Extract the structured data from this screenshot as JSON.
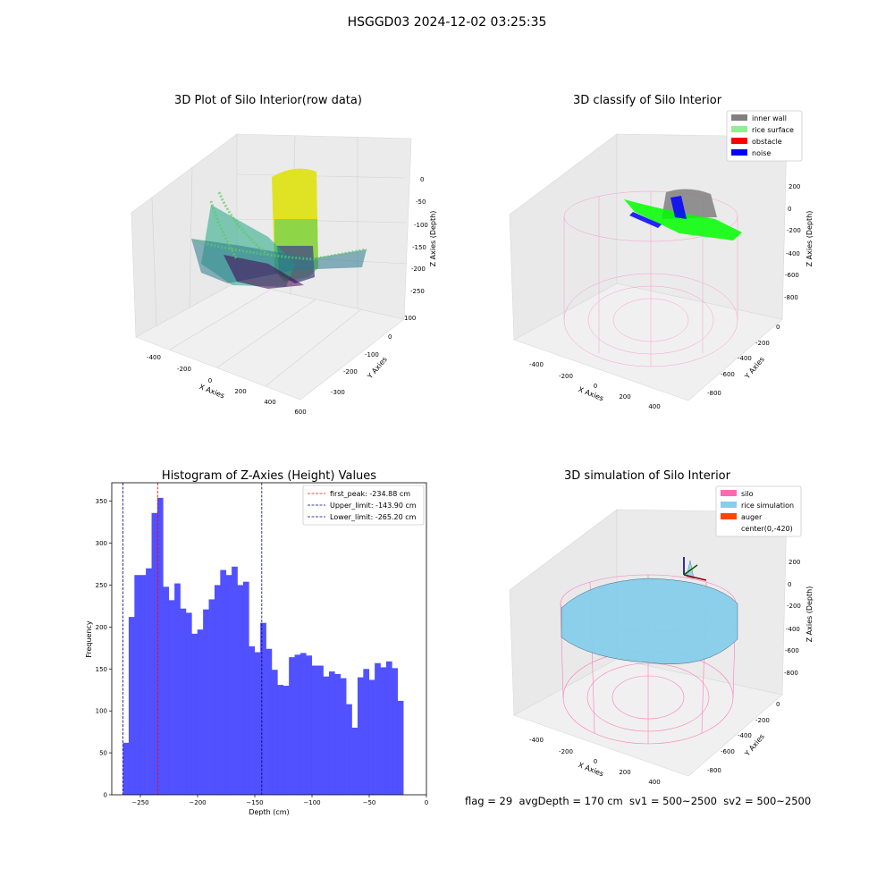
{
  "figure_title": "HSGGD03 2024-12-02 03:25:35",
  "footer_text": "flag = 29  avgDepth = 170 cm  sv1 = 500~2500  sv2 = 500~2500",
  "colors": {
    "hist_bar": "#4b4bff",
    "silo": "#ff69b4",
    "rice": "#87ceeb",
    "auger": "#ff4500",
    "inner_wall": "#808080",
    "rice_surface": "#90ee90",
    "obstacle": "#ff0000",
    "noise": "#0000ff"
  },
  "chart_data": [
    {
      "type": "scatter",
      "projection": "3d",
      "title": "3D Plot of Silo Interior(row data)",
      "xlabel": "X Axies",
      "ylabel": "Y Axies",
      "zlabel": "Z Axies (Depth)",
      "x_ticks": [
        "-400",
        "-200",
        "0",
        "200",
        "400",
        "600"
      ],
      "y_ticks": [
        "100",
        "0",
        "-100",
        "-200",
        "-300"
      ],
      "z_ticks": [
        "0",
        "-50",
        "-100",
        "-150",
        "-200",
        "-250"
      ],
      "colormap": "viridis"
    },
    {
      "type": "scatter",
      "projection": "3d",
      "title": "3D classify of Silo Interior",
      "xlabel": "X Axies",
      "ylabel": "Y Axies",
      "zlabel": "Z Axies (Depth)",
      "x_ticks": [
        "-400",
        "-200",
        "0",
        "200",
        "400"
      ],
      "y_ticks": [
        "0",
        "-200",
        "-400",
        "-600",
        "-800"
      ],
      "z_ticks": [
        "200",
        "0",
        "-200",
        "-400",
        "-600",
        "-800"
      ],
      "legend": [
        {
          "label": "inner wall",
          "color": "#808080"
        },
        {
          "label": "rice surface",
          "color": "#90ee90"
        },
        {
          "label": "obstacle",
          "color": "#ff0000"
        },
        {
          "label": "noise",
          "color": "#0000ff"
        }
      ],
      "legend_position": "top-right"
    },
    {
      "type": "bar",
      "subtype": "histogram",
      "title": "Histogram of Z-Axies (Height) Values",
      "xlabel": "Depth (cm)",
      "ylabel": "Frequency",
      "xlim": [
        -275,
        0
      ],
      "ylim": [
        0,
        372
      ],
      "x_ticks": [
        -250,
        -200,
        -150,
        -100,
        -50,
        0
      ],
      "y_ticks": [
        0,
        50,
        100,
        150,
        200,
        250,
        300,
        350
      ],
      "bin_start": -265.2,
      "bin_width": 5,
      "values": [
        62,
        212,
        262,
        262,
        270,
        336,
        354,
        248,
        232,
        252,
        222,
        217,
        192,
        197,
        221,
        233,
        250,
        268,
        262,
        272,
        250,
        254,
        177,
        170,
        205,
        174,
        149,
        131,
        130,
        164,
        167,
        169,
        166,
        154,
        154,
        141,
        147,
        144,
        139,
        108,
        80,
        140,
        150,
        137,
        157,
        152,
        159,
        151,
        112
      ],
      "vlines": [
        {
          "label": "first_peak: -234.88 cm",
          "x": -234.88,
          "color": "#ff0000"
        },
        {
          "label": "Upper_limit: -143.90 cm",
          "x": -143.9,
          "color": "#00008b"
        },
        {
          "label": "Lower_limit: -265.20 cm",
          "x": -265.2,
          "color": "#00008b"
        }
      ],
      "legend_position": "top-right"
    },
    {
      "type": "area",
      "projection": "3d",
      "title": "3D simulation of Silo Interior",
      "xlabel": "X Axies",
      "ylabel": "Y Axies",
      "zlabel": "Z Axies (Depth)",
      "x_ticks": [
        "-400",
        "-200",
        "0",
        "200",
        "400"
      ],
      "y_ticks": [
        "0",
        "-200",
        "-400",
        "-600",
        "-800"
      ],
      "z_ticks": [
        "200",
        "0",
        "-200",
        "-400",
        "-600",
        "-800"
      ],
      "legend": [
        {
          "label": "silo",
          "color": "#ff69b4"
        },
        {
          "label": "rice simulation",
          "color": "#87ceeb"
        },
        {
          "label": "auger",
          "color": "#ff4500"
        },
        {
          "label": "center(0,-420)",
          "color": ""
        }
      ],
      "legend_position": "top-right"
    }
  ]
}
